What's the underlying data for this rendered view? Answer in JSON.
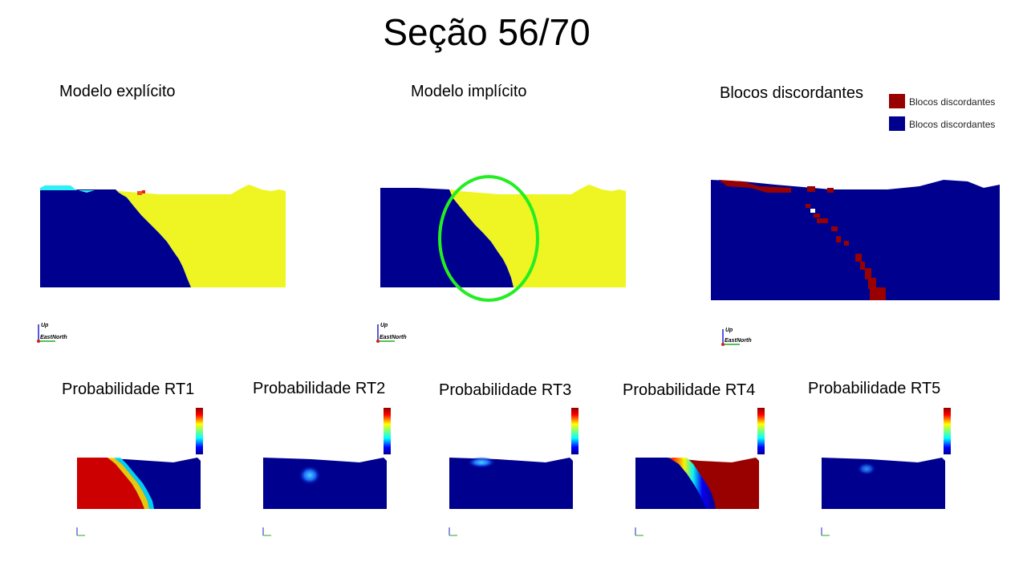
{
  "title": "Seção 56/70",
  "panels": {
    "explicit": "Modelo explícito",
    "implicit": "Modelo implícito",
    "discordant": "Blocos discordantes"
  },
  "legend": {
    "items": [
      {
        "label": "Blocos discordantes",
        "color": "#990000"
      },
      {
        "label": "Blocos discordantes",
        "color": "#00008f"
      }
    ]
  },
  "axes": {
    "up": "Up",
    "east": "East",
    "north": "North"
  },
  "colors": {
    "blue": "#00008f",
    "yellow": "#eef522",
    "cyan": "#2ef0f5",
    "dark_red": "#990000",
    "highlight_green": "#22ee22"
  },
  "probability": {
    "labels": [
      "Probabilidade RT1",
      "Probabilidade RT2",
      "Probabilidade RT3",
      "Probabilidade RT4",
      "Probabilidade RT5"
    ]
  }
}
